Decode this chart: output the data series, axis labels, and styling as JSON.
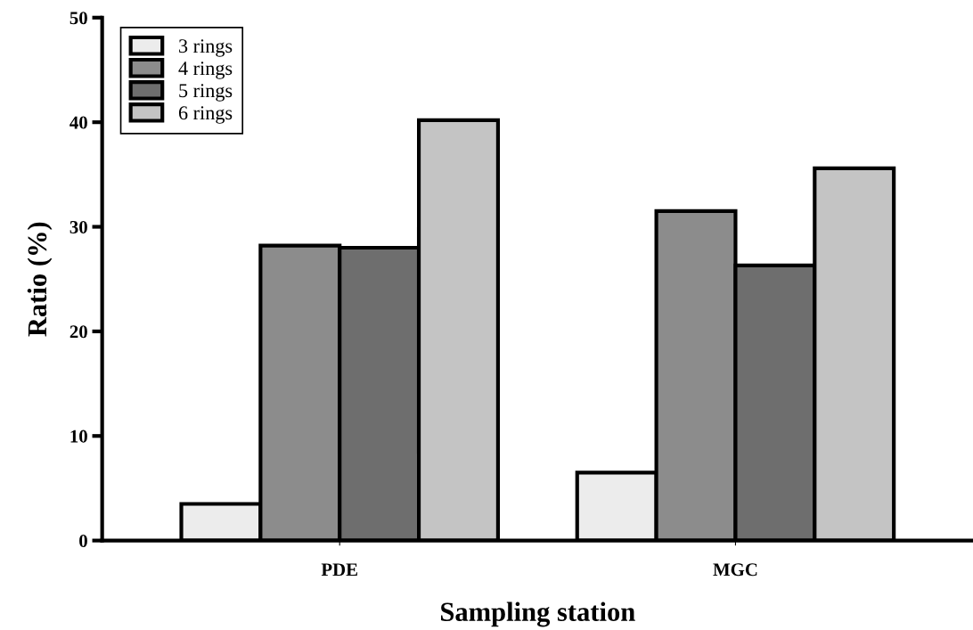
{
  "chart_data": {
    "type": "bar",
    "xlabel": "Sampling station",
    "ylabel": "Ratio (%)",
    "categories": [
      "PDE",
      "MGC"
    ],
    "series": [
      {
        "name": "3 rings",
        "color": "#ececec",
        "values": [
          3.5,
          6.5
        ]
      },
      {
        "name": "4 rings",
        "color": "#8c8c8c",
        "values": [
          28.2,
          31.5
        ]
      },
      {
        "name": "5 rings",
        "color": "#6e6e6e",
        "values": [
          28.0,
          26.3
        ]
      },
      {
        "name": "6 rings",
        "color": "#c4c4c4",
        "values": [
          40.2,
          35.6
        ]
      }
    ],
    "ylim": [
      0,
      50
    ],
    "yticks": [
      0,
      10,
      20,
      30,
      40,
      50
    ],
    "grid": false,
    "legend": "top left"
  }
}
